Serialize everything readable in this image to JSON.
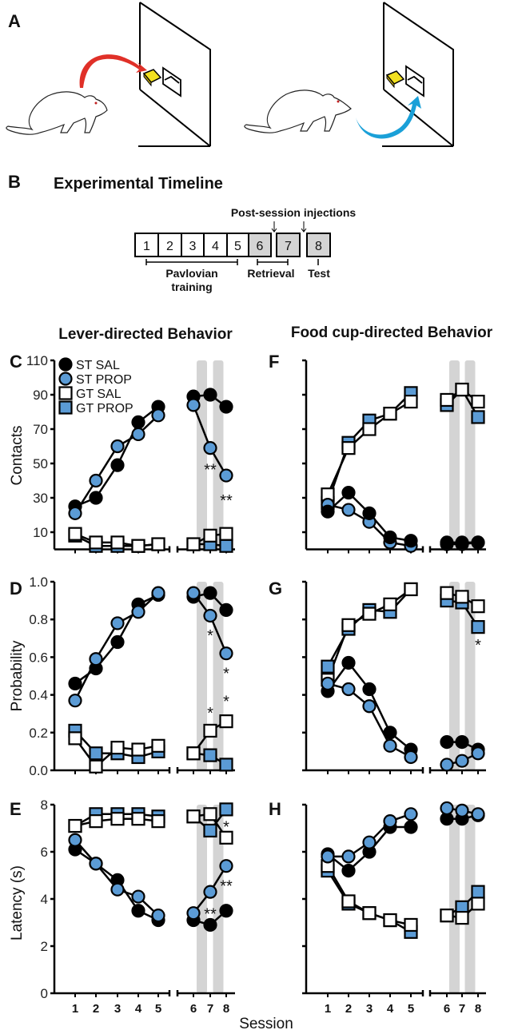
{
  "panel_a": {
    "letter": "A"
  },
  "panel_b": {
    "letter": "B",
    "title": "Experimental Timeline",
    "injections_label": "Post-session injections",
    "sessions": [
      "1",
      "2",
      "3",
      "4",
      "5",
      "6",
      "7",
      "8"
    ],
    "shaded_sessions": [
      "6",
      "7",
      "8"
    ],
    "phases": {
      "pavlovian_1": "Pavlovian",
      "pavlovian_2": "training",
      "retrieval": "Retrieval",
      "test": "Test"
    }
  },
  "headings": {
    "lever": "Lever-directed Behavior",
    "foodcup": "Food cup-directed Behavior"
  },
  "xlabel": "Session",
  "legend": [
    {
      "name": "ST SAL",
      "marker": "circle",
      "fill": "#000000"
    },
    {
      "name": "ST PROP",
      "marker": "circle",
      "fill": "#5b9bd5"
    },
    {
      "name": "GT SAL",
      "marker": "square",
      "fill": "#ffffff"
    },
    {
      "name": "GT PROP",
      "marker": "square",
      "fill": "#5b9bd5"
    }
  ],
  "colors": {
    "blue": "#5b9bd5",
    "shade": "#d4d4d4",
    "red_arrow": "#e03028",
    "blue_arrow": "#1aa0d8",
    "lever": "#f2e020"
  },
  "chart_data": [
    {
      "id": "C",
      "letter": "C",
      "type": "line",
      "ylabel": "Contacts",
      "xlabel": "Session",
      "ylim": [
        0,
        110
      ],
      "yticks": [
        10,
        30,
        50,
        70,
        90,
        110
      ],
      "show_yticklabels": true,
      "show_xticklabels": false,
      "x": [
        1,
        2,
        3,
        4,
        5,
        6,
        7,
        8
      ],
      "shaded_between": [
        [
          6,
          7
        ],
        [
          7,
          8
        ]
      ],
      "series": [
        {
          "name": "GT PROP",
          "values": [
            8,
            2,
            2,
            2,
            3,
            3,
            3,
            2
          ]
        },
        {
          "name": "GT SAL",
          "values": [
            9,
            4,
            4,
            2,
            3,
            3,
            8,
            9
          ]
        },
        {
          "name": "ST SAL",
          "values": [
            25,
            30,
            49,
            74,
            83,
            89,
            90,
            83
          ]
        },
        {
          "name": "ST PROP",
          "values": [
            21,
            40,
            60,
            67,
            78,
            84,
            59,
            43
          ]
        }
      ],
      "annotations": [
        {
          "x": 7,
          "y": 47,
          "text": "**"
        },
        {
          "x": 8,
          "y": 29,
          "text": "**"
        }
      ]
    },
    {
      "id": "D",
      "letter": "D",
      "type": "line",
      "ylabel": "Probability",
      "xlabel": "Session",
      "ylim": [
        0,
        1
      ],
      "yticks": [
        0.0,
        0.2,
        0.4,
        0.6,
        0.8,
        1.0
      ],
      "ytick_labels": [
        "0.0",
        "0.2",
        "0.4",
        "0.6",
        "0.8",
        "1.0"
      ],
      "show_yticklabels": true,
      "show_xticklabels": false,
      "x": [
        1,
        2,
        3,
        4,
        5,
        6,
        7,
        8
      ],
      "shaded_between": [
        [
          6,
          7
        ],
        [
          7,
          8
        ]
      ],
      "series": [
        {
          "name": "GT PROP",
          "values": [
            0.21,
            0.09,
            0.09,
            0.07,
            0.1,
            0.09,
            0.08,
            0.03
          ]
        },
        {
          "name": "GT SAL",
          "values": [
            0.17,
            0.02,
            0.12,
            0.11,
            0.13,
            0.09,
            0.21,
            0.26
          ]
        },
        {
          "name": "ST SAL",
          "values": [
            0.46,
            0.54,
            0.68,
            0.88,
            0.93,
            0.92,
            0.94,
            0.85
          ]
        },
        {
          "name": "ST PROP",
          "values": [
            0.37,
            0.59,
            0.78,
            0.84,
            0.94,
            0.94,
            0.82,
            0.62
          ]
        }
      ],
      "annotations": [
        {
          "x": 7,
          "y": 0.72,
          "text": "*"
        },
        {
          "x": 8,
          "y": 0.52,
          "text": "*"
        },
        {
          "x": 7,
          "y": 0.31,
          "text": "*"
        },
        {
          "x": 8,
          "y": 0.37,
          "text": "*"
        }
      ]
    },
    {
      "id": "E",
      "letter": "E",
      "type": "line",
      "ylabel": "Latency (s)",
      "xlabel": "Session",
      "ylim": [
        0,
        8
      ],
      "yticks": [
        0,
        2,
        4,
        6,
        8
      ],
      "show_yticklabels": true,
      "show_xticklabels": true,
      "x": [
        1,
        2,
        3,
        4,
        5,
        6,
        7,
        8
      ],
      "shaded_between": [
        [
          6,
          7
        ],
        [
          7,
          8
        ]
      ],
      "series": [
        {
          "name": "GT PROP",
          "values": [
            7.1,
            7.6,
            7.6,
            7.6,
            7.5,
            7.5,
            6.9,
            7.8
          ]
        },
        {
          "name": "GT SAL",
          "values": [
            7.1,
            7.3,
            7.4,
            7.4,
            7.3,
            7.5,
            7.6,
            6.6
          ]
        },
        {
          "name": "ST SAL",
          "values": [
            6.1,
            5.5,
            4.8,
            3.5,
            3.1,
            3.1,
            2.9,
            3.5
          ]
        },
        {
          "name": "ST PROP",
          "values": [
            6.5,
            5.5,
            4.4,
            4.1,
            3.3,
            3.4,
            4.3,
            5.4
          ]
        }
      ],
      "annotations": [
        {
          "x": 8,
          "y": 7.1,
          "text": "*"
        },
        {
          "x": 8,
          "y": 4.6,
          "text": "**"
        },
        {
          "x": 7,
          "y": 3.4,
          "text": "**"
        }
      ]
    },
    {
      "id": "F",
      "letter": "F",
      "type": "line",
      "ylabel": "",
      "xlabel": "Session",
      "ylim": [
        0,
        110
      ],
      "yticks": [
        10,
        30,
        50,
        70,
        90,
        110
      ],
      "show_yticklabels": false,
      "show_xticklabels": false,
      "x": [
        1,
        2,
        3,
        4,
        5,
        6,
        7,
        8
      ],
      "shaded_between": [
        [
          6,
          7
        ],
        [
          7,
          8
        ]
      ],
      "series": [
        {
          "name": "GT PROP",
          "values": [
            27,
            62,
            75,
            79,
            91,
            84,
            93,
            77
          ]
        },
        {
          "name": "GT SAL",
          "values": [
            32,
            59,
            70,
            79,
            86,
            87,
            93,
            86
          ]
        },
        {
          "name": "ST PROP",
          "values": [
            26,
            23,
            16,
            4,
            2,
            3,
            3,
            4
          ]
        },
        {
          "name": "ST SAL",
          "values": [
            22,
            33,
            21,
            7,
            5,
            4,
            4,
            4
          ]
        }
      ],
      "annotations": []
    },
    {
      "id": "G",
      "letter": "G",
      "type": "line",
      "ylabel": "",
      "xlabel": "Session",
      "ylim": [
        0,
        1
      ],
      "yticks": [
        0.0,
        0.2,
        0.4,
        0.6,
        0.8,
        1.0
      ],
      "show_yticklabels": false,
      "show_xticklabels": false,
      "x": [
        1,
        2,
        3,
        4,
        5,
        6,
        7,
        8
      ],
      "shaded_between": [
        [
          6,
          7
        ],
        [
          7,
          8
        ]
      ],
      "series": [
        {
          "name": "GT PROP",
          "values": [
            0.55,
            0.75,
            0.85,
            0.84,
            0.96,
            0.9,
            0.89,
            0.76
          ]
        },
        {
          "name": "GT SAL",
          "values": [
            0.48,
            0.77,
            0.83,
            0.88,
            0.96,
            0.94,
            0.92,
            0.87
          ]
        },
        {
          "name": "ST SAL",
          "values": [
            0.42,
            0.57,
            0.43,
            0.2,
            0.11,
            0.15,
            0.15,
            0.11
          ]
        },
        {
          "name": "ST PROP",
          "values": [
            0.46,
            0.43,
            0.34,
            0.13,
            0.07,
            0.03,
            0.05,
            0.09
          ]
        }
      ],
      "annotations": [
        {
          "x": 8,
          "y": 0.67,
          "text": "*"
        }
      ]
    },
    {
      "id": "H",
      "letter": "H",
      "type": "line",
      "ylabel": "",
      "xlabel": "Session",
      "ylim": [
        0,
        8
      ],
      "yticks": [
        0,
        2,
        4,
        6,
        8
      ],
      "show_yticklabels": false,
      "show_xticklabels": true,
      "x": [
        1,
        2,
        3,
        4,
        5,
        6,
        7,
        8
      ],
      "shaded_between": [
        [
          6,
          7
        ],
        [
          7,
          8
        ]
      ],
      "series": [
        {
          "name": "GT PROP",
          "values": [
            5.2,
            3.8,
            3.4,
            3.1,
            2.6,
            3.3,
            3.65,
            4.3
          ]
        },
        {
          "name": "GT SAL",
          "values": [
            5.4,
            3.9,
            3.4,
            3.1,
            2.9,
            3.3,
            3.2,
            3.8
          ]
        },
        {
          "name": "ST SAL",
          "values": [
            5.9,
            5.2,
            6.0,
            7.05,
            7.05,
            7.4,
            7.4,
            7.55
          ]
        },
        {
          "name": "ST PROP",
          "values": [
            5.8,
            5.8,
            6.4,
            7.3,
            7.6,
            7.85,
            7.75,
            7.6
          ]
        }
      ],
      "annotations": []
    }
  ]
}
